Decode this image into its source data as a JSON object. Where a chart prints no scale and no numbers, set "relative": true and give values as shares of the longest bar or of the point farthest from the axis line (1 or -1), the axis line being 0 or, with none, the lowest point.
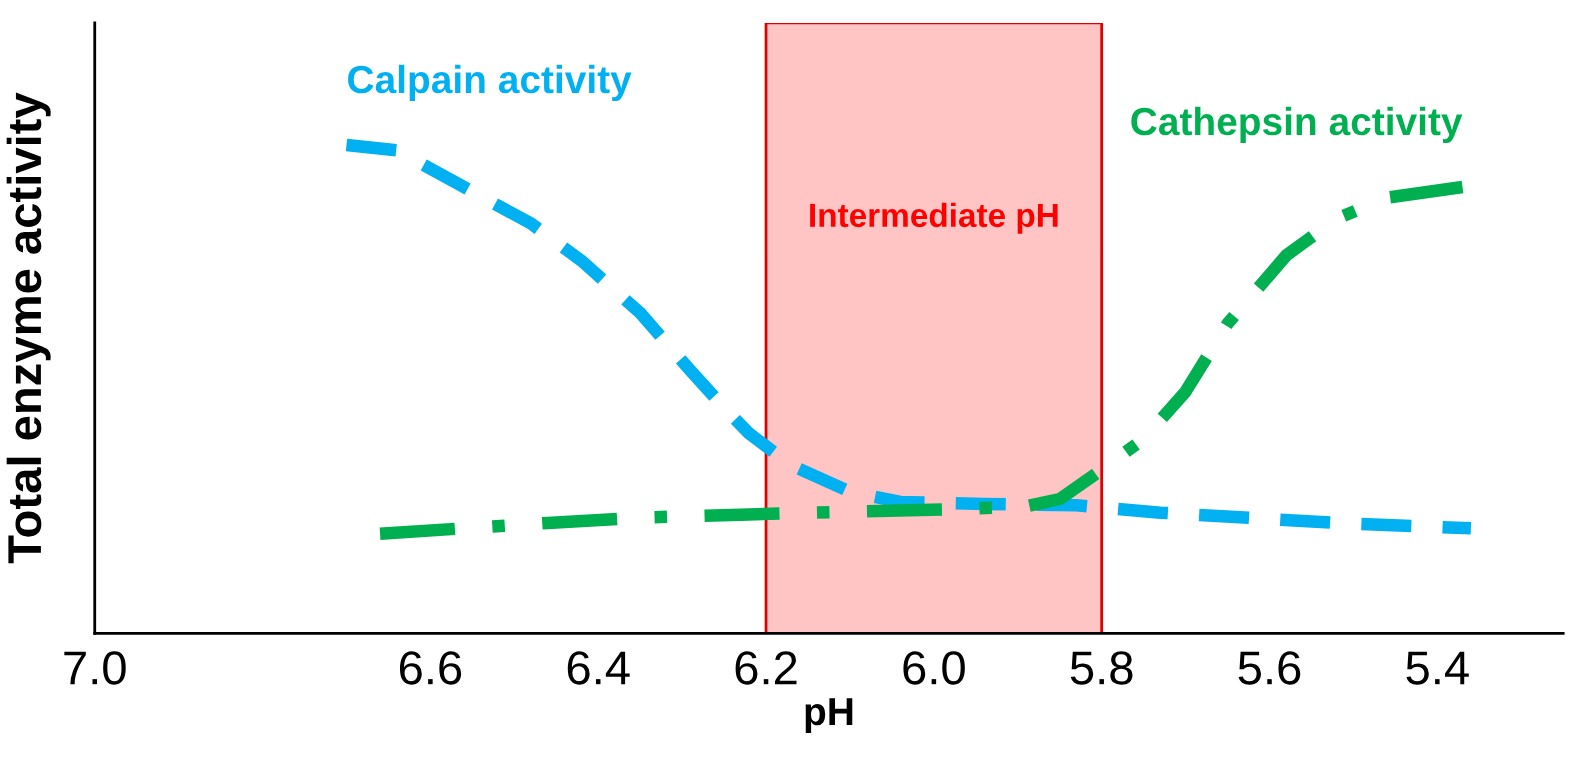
{
  "chart_data": {
    "type": "line",
    "xlabel": "pH",
    "ylabel": "Total enzyme activity",
    "relative": true,
    "tick_labels": "x",
    "legend": false,
    "grid": false,
    "xlim": [
      7.0,
      5.25
    ],
    "xticks": [
      {
        "value": 7.0,
        "label": "7.0"
      },
      {
        "value": 6.6,
        "label": "6.6"
      },
      {
        "value": 6.4,
        "label": "6.4"
      },
      {
        "value": 6.2,
        "label": "6.2"
      },
      {
        "value": 6.0,
        "label": "6.0"
      },
      {
        "value": 5.8,
        "label": "5.8"
      },
      {
        "value": 5.6,
        "label": "5.6"
      },
      {
        "value": 5.4,
        "label": "5.4"
      }
    ],
    "bands": [
      {
        "axis": "x",
        "from": 6.2,
        "to": 5.8,
        "label": "Intermediate pH",
        "color": "#ffc4c4"
      }
    ],
    "series": [
      {
        "name": "Calpain activity",
        "color": "#00b0f0",
        "line_style": "dashed",
        "x": [
          6.7,
          6.64,
          6.56,
          6.48,
          6.42,
          6.35,
          6.29,
          6.25,
          6.22,
          6.17,
          6.1,
          6.04,
          5.94,
          5.83,
          5.73,
          5.63,
          5.52,
          5.36
        ],
        "values": [
          1.0,
          0.989,
          0.914,
          0.839,
          0.763,
          0.656,
          0.538,
          0.462,
          0.409,
          0.344,
          0.29,
          0.269,
          0.265,
          0.262,
          0.247,
          0.237,
          0.226,
          0.215
        ]
      },
      {
        "name": "Cathepsin activity",
        "color": "#00b050",
        "line_style": "dashdot",
        "x": [
          6.66,
          6.56,
          6.46,
          6.35,
          6.23,
          6.15,
          5.98,
          5.89,
          5.85,
          5.81,
          5.75,
          5.7,
          5.65,
          5.58,
          5.52,
          5.46,
          5.37
        ],
        "values": [
          0.204,
          0.215,
          0.226,
          0.237,
          0.243,
          0.247,
          0.254,
          0.26,
          0.275,
          0.323,
          0.398,
          0.495,
          0.634,
          0.774,
          0.849,
          0.892,
          0.914
        ]
      }
    ]
  }
}
